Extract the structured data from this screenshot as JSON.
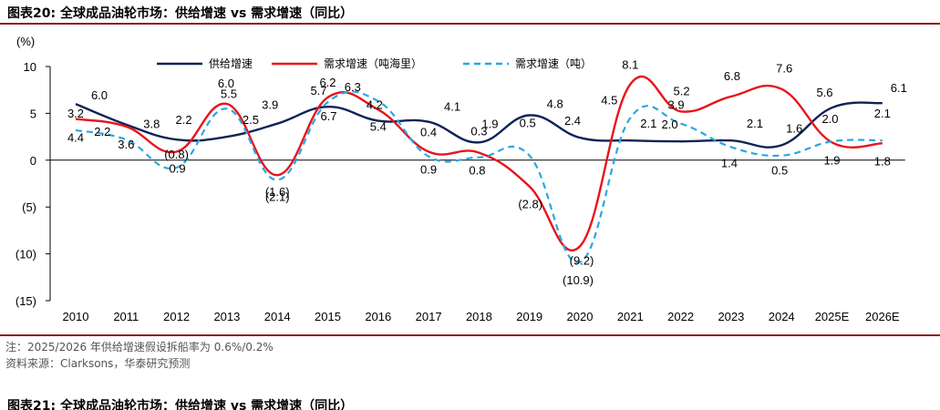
{
  "header": {
    "figure_title": "图表20:  全球成品油轮市场：供给增速 vs 需求增速（同比）",
    "next_figure_title": "图表21:  全球成品油轮市场：供给增速 vs 需求增速（同比）"
  },
  "footer": {
    "note": "注：2025/2026 年供给增速假设拆船率为 0.6%/0.2%",
    "source": "资料来源：Clarksons，华泰研究预测"
  },
  "chart_data": {
    "type": "line",
    "title": "",
    "xlabel": "",
    "ylabel": "(%)",
    "categories": [
      "2010",
      "2011",
      "2012",
      "2013",
      "2014",
      "2015",
      "2016",
      "2017",
      "2018",
      "2019",
      "2020",
      "2021",
      "2022",
      "2023",
      "2024",
      "2025E",
      "2026E"
    ],
    "ylim": [
      -15,
      10
    ],
    "yticks": [
      {
        "value": 10,
        "label": "10"
      },
      {
        "value": 5,
        "label": "5"
      },
      {
        "value": 0,
        "label": "0"
      },
      {
        "value": -5,
        "label": "(5)"
      },
      {
        "value": -10,
        "label": "(10)"
      },
      {
        "value": -15,
        "label": "(15)"
      }
    ],
    "grid": false,
    "legend_position": "top",
    "series": [
      {
        "name": "供给增速",
        "color": "#0d2357",
        "dash": "solid",
        "values": [
          6.0,
          3.8,
          2.2,
          2.5,
          3.9,
          5.7,
          4.2,
          4.1,
          1.9,
          4.8,
          2.4,
          2.1,
          2.0,
          2.1,
          1.6,
          5.6,
          6.1
        ],
        "labels": [
          "6.0",
          "3.8",
          "2.2",
          "2.5",
          "3.9",
          "5.7",
          "4.2",
          "4.1",
          "1.9",
          "4.8",
          "2.4",
          "2.1",
          "2.0",
          "2.1",
          "1.6",
          "5.6",
          "6.1"
        ]
      },
      {
        "name": "需求增速（吨海里）",
        "color": "#e8141b",
        "dash": "solid",
        "values": [
          4.4,
          3.6,
          0.9,
          6.0,
          -1.6,
          6.7,
          5.4,
          0.9,
          0.8,
          -2.8,
          -9.2,
          8.1,
          5.2,
          6.8,
          7.6,
          1.9,
          1.8
        ],
        "labels": [
          "4.4",
          "3.6",
          "0.9",
          "6.0",
          "(1.6)",
          "6.7",
          "5.4",
          "0.9",
          "0.8",
          "(2.8)",
          "(9.2)",
          "8.1",
          "5.2",
          "6.8",
          "7.6",
          "1.9",
          "1.8"
        ]
      },
      {
        "name": "需求增速（吨）",
        "color": "#2aa7e0",
        "dash": "dashed",
        "values": [
          3.2,
          2.2,
          -0.8,
          5.5,
          -2.1,
          6.2,
          6.3,
          0.4,
          0.3,
          0.5,
          -10.9,
          4.5,
          3.9,
          1.4,
          0.5,
          2.0,
          2.1
        ],
        "labels": [
          "3.2",
          "2.2",
          "(0.8)",
          "5.5",
          "(2.1)",
          "6.2",
          "6.3",
          "0.4",
          "0.3",
          "0.5",
          "(10.9)",
          "4.5",
          "3.9",
          "1.4",
          "0.5",
          "2.0",
          "2.1"
        ]
      }
    ]
  }
}
